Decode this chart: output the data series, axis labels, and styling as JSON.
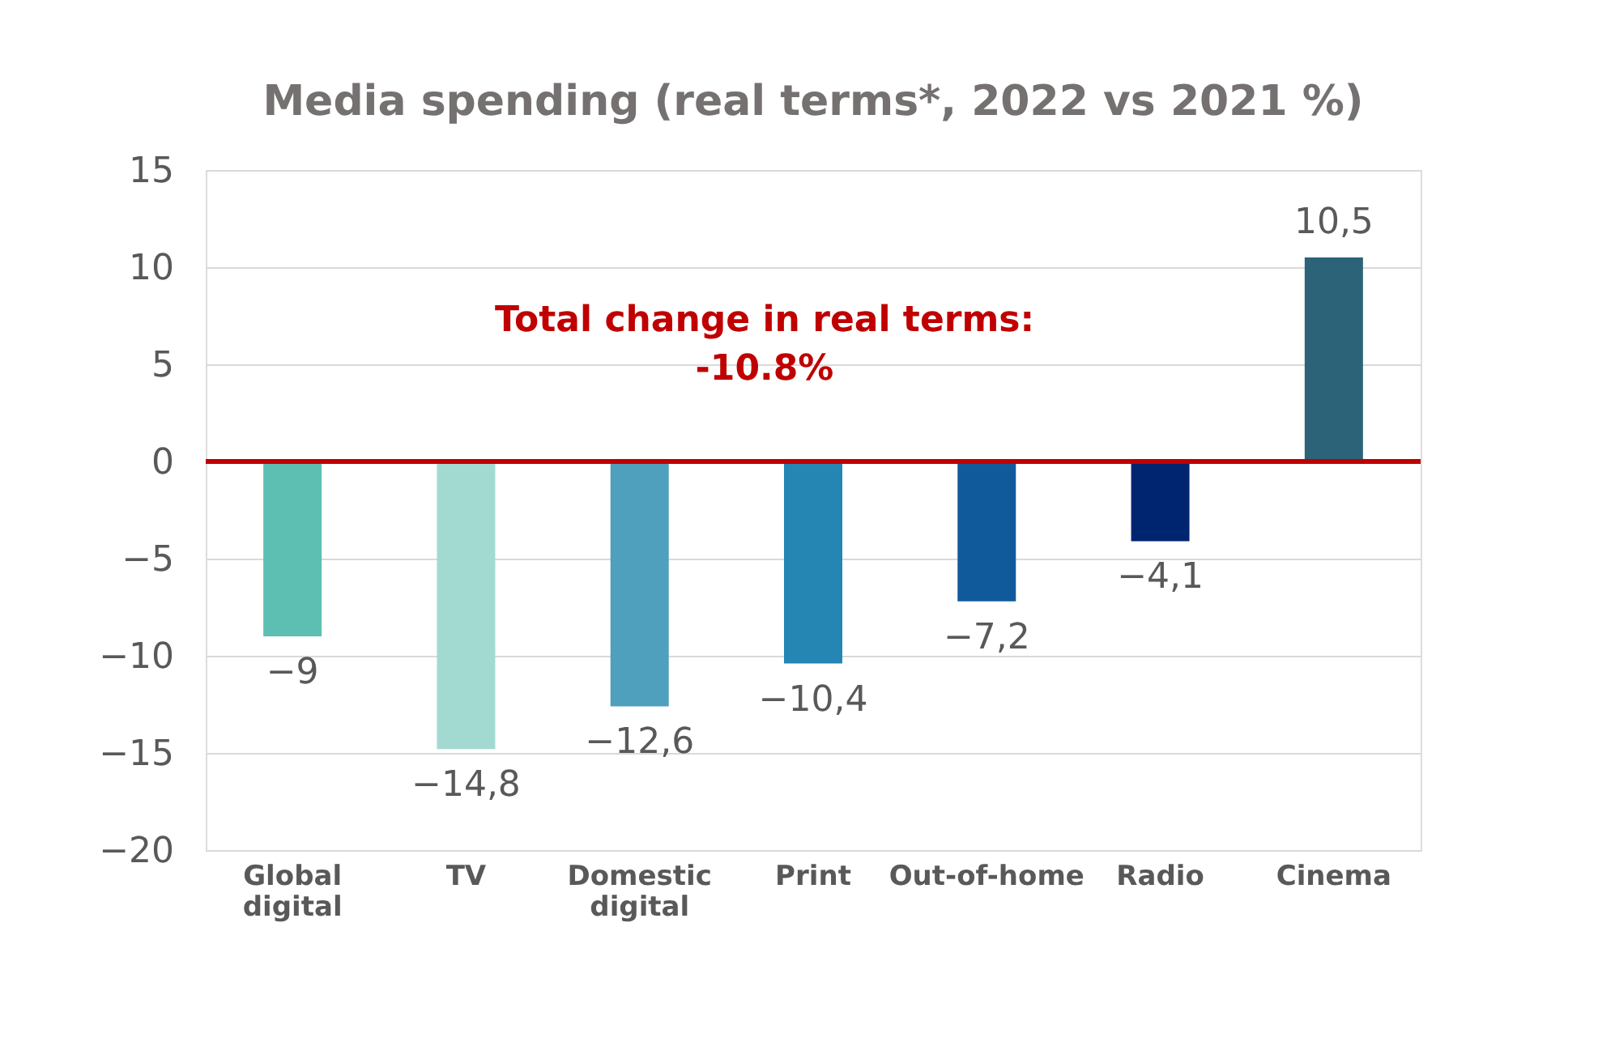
{
  "chart_data": {
    "type": "bar",
    "title": "Media spending (real terms*,  2022 vs 2021 %)",
    "categories": [
      "Global digital",
      "TV",
      "Domestic digital",
      "Print",
      "Out-of-home",
      "Radio",
      "Cinema"
    ],
    "values": [
      -9,
      -14.8,
      -12.6,
      -10.4,
      -7.2,
      -4.1,
      10.5
    ],
    "colors": [
      "#5dbfb2",
      "#a2dad2",
      "#4fa0bd",
      "#2586b4",
      "#105a9c",
      "#002570",
      "#2c6378"
    ],
    "value_labels": [
      "−9",
      "−14,8",
      "−12,6",
      "−10,4",
      "−7,2",
      "−4,1",
      "10,5"
    ],
    "ylim": [
      -20,
      15
    ],
    "yticks": [
      -20,
      -15,
      -10,
      -5,
      0,
      5,
      10,
      15
    ],
    "grid": "y",
    "ref_lines": [
      {
        "axis": "y",
        "value": 0,
        "color": "#c00000"
      }
    ],
    "annotations": [
      "Total change in real terms:\n-10.8%"
    ]
  }
}
